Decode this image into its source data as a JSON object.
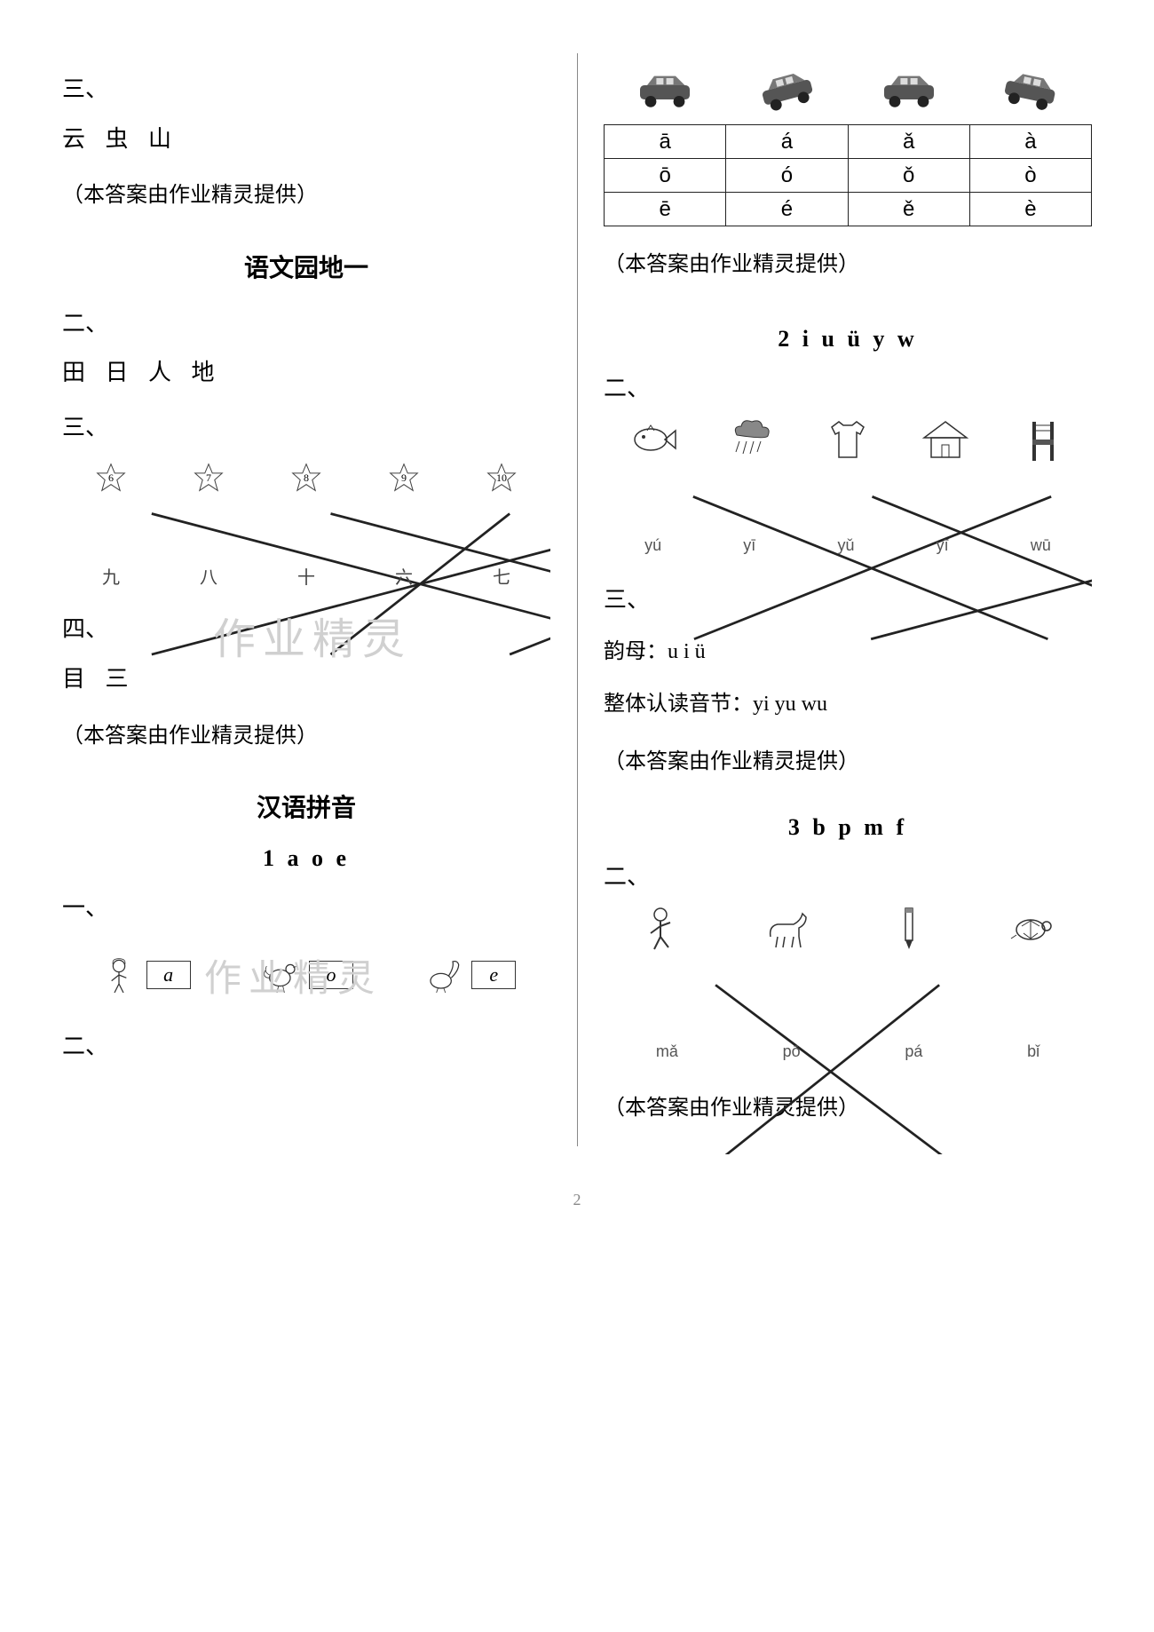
{
  "colors": {
    "text": "#000000",
    "background": "#ffffff",
    "divider": "#888888",
    "watermark": "#d0d0d0",
    "line": "#222222",
    "muted": "#555555"
  },
  "left": {
    "q3_label": "三、",
    "q3_text": "云 虫 山",
    "source_note_1": "（本答案由作业精灵提供）",
    "heading_garden": "语文园地一",
    "q2_label": "二、",
    "q2_text": "田 日 人 地",
    "q3b_label": "三、",
    "stars": [
      "6",
      "7",
      "8",
      "9",
      "10"
    ],
    "cn_nums": [
      "九",
      "八",
      "十",
      "六",
      "七"
    ],
    "star_connections": [
      {
        "from": 0,
        "to": 3
      },
      {
        "from": 1,
        "to": 4
      },
      {
        "from": 2,
        "to": 1
      },
      {
        "from": 3,
        "to": 0
      },
      {
        "from": 4,
        "to": 2
      }
    ],
    "q4_label": "四、",
    "q4_text": "目 三",
    "watermark_1": "作业精灵",
    "source_note_2": "（本答案由作业精灵提供）",
    "heading_pinyin": "汉语拼音",
    "lesson_1_title": "1 a o e",
    "q1c_label": "一、",
    "aoe_items": [
      "a",
      "o",
      "e"
    ],
    "q2c_label": "二、"
  },
  "right": {
    "tone_cars_rotations": [
      0,
      -15,
      0,
      12
    ],
    "tone_rows": [
      [
        "ā",
        "á",
        "ǎ",
        "à"
      ],
      [
        "ō",
        "ó",
        "ǒ",
        "ò"
      ],
      [
        "ē",
        "é",
        "ě",
        "è"
      ]
    ],
    "source_note_1": "（本答案由作业精灵提供）",
    "lesson_2_title": "2 i u ü y w",
    "q2_label": "二、",
    "q2_pics_labels": [
      "yú",
      "yī",
      "yǔ",
      "yī",
      "wū"
    ],
    "q2_connections": [
      {
        "from": 0,
        "to": 2
      },
      {
        "from": 1,
        "to": 3
      },
      {
        "from": 2,
        "to": 0
      },
      {
        "from": 3,
        "to": 4
      },
      {
        "from": 4,
        "to": 1
      }
    ],
    "q3_label": "三、",
    "yunmu_label": "韵母：u i ü",
    "zhengti_label": "整体认读音节：yi yu wu",
    "source_note_2": "（本答案由作业精灵提供）",
    "lesson_3_title": "3 b p m f",
    "q2b_label": "二、",
    "q2b_labels": [
      "mǎ",
      "pō",
      "pá",
      "bǐ"
    ],
    "q2b_connections": [
      {
        "from": 0,
        "to": 1
      },
      {
        "from": 1,
        "to": 0
      },
      {
        "from": 2,
        "to": 3
      },
      {
        "from": 3,
        "to": 2
      }
    ],
    "source_note_3": "（本答案由作业精灵提供）"
  },
  "page_number": "2"
}
